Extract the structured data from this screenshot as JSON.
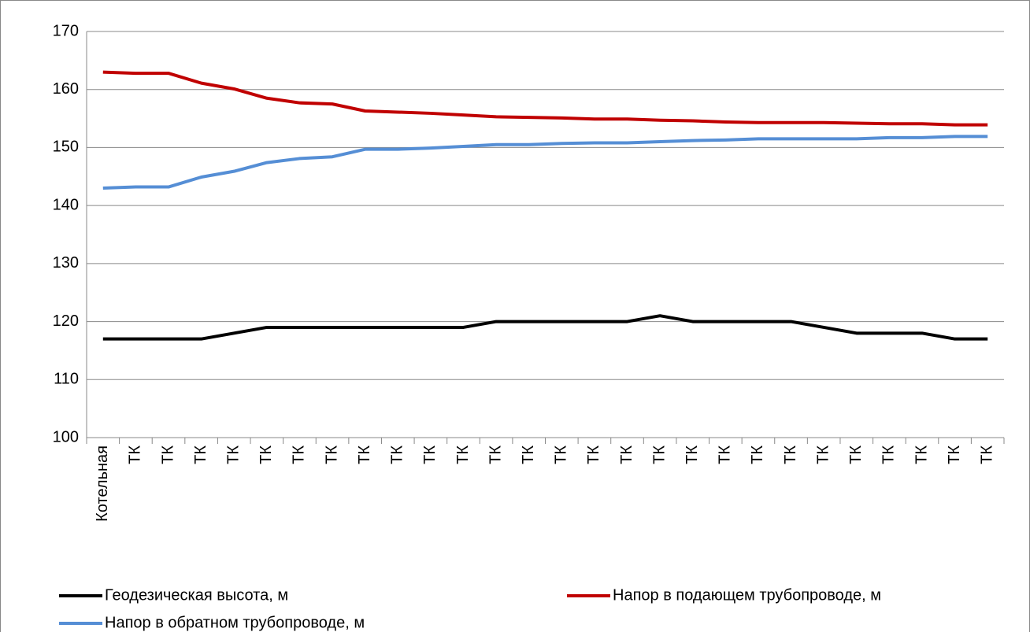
{
  "chart_data": {
    "type": "line",
    "categories": [
      "Котельная",
      "ТК",
      "ТК",
      "ТК",
      "ТК",
      "ТК",
      "ТК",
      "ТК",
      "ТК",
      "ТК",
      "ТК",
      "ТК",
      "ТК",
      "ТК",
      "ТК",
      "ТК",
      "ТК",
      "ТК",
      "ТК",
      "ТК",
      "ТК",
      "ТК",
      "ТК",
      "ТК",
      "ТК",
      "ТК",
      "ТК",
      "ТК"
    ],
    "series": [
      {
        "name": "Геодезическая высота, м",
        "color": "#000000",
        "values": [
          117,
          117,
          117,
          117,
          118,
          119,
          119,
          119,
          119,
          119,
          119,
          119,
          120,
          120,
          120,
          120,
          120,
          121,
          120,
          120,
          120,
          120,
          119,
          118,
          118,
          118,
          117,
          117
        ]
      },
      {
        "name": "Напор в подающем трубопроводе, м",
        "color": "#c00000",
        "values": [
          163,
          162.8,
          162.8,
          161.1,
          160.1,
          158.5,
          157.7,
          157.5,
          156.3,
          156.1,
          155.9,
          155.6,
          155.3,
          155.2,
          155.1,
          154.9,
          154.9,
          154.7,
          154.6,
          154.4,
          154.3,
          154.3,
          154.3,
          154.2,
          154.1,
          154.1,
          153.9,
          153.9
        ]
      },
      {
        "name": "Напор в обратном трубопроводе, м",
        "color": "#558ed5",
        "values": [
          143,
          143.2,
          143.2,
          144.9,
          145.9,
          147.4,
          148.1,
          148.4,
          149.7,
          149.7,
          149.9,
          150.2,
          150.5,
          150.5,
          150.7,
          150.8,
          150.8,
          151.0,
          151.2,
          151.3,
          151.5,
          151.5,
          151.5,
          151.5,
          151.7,
          151.7,
          151.9,
          151.9
        ]
      }
    ],
    "ylim": [
      100,
      170
    ],
    "yticks": [
      100,
      110,
      120,
      130,
      140,
      150,
      160,
      170
    ],
    "grid": true,
    "legend": "bottom"
  }
}
